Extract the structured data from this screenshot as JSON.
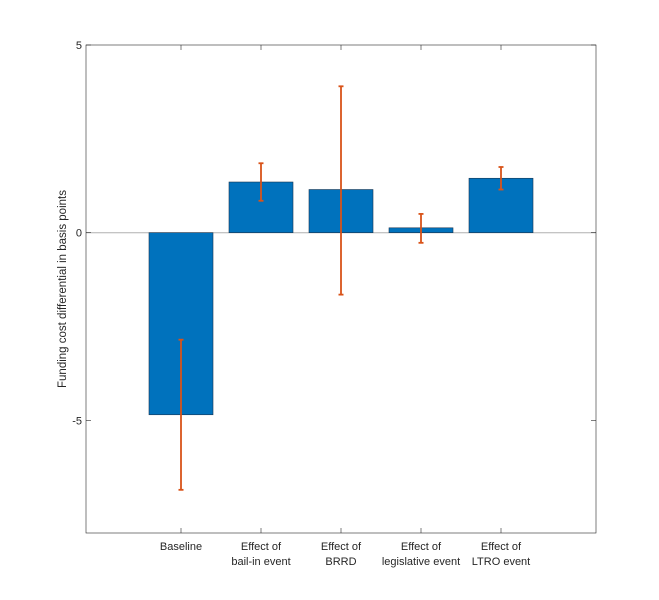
{
  "chart_data": {
    "type": "bar",
    "title": "",
    "xlabel": "",
    "ylabel": "Funding cost differential in basis points",
    "categories": [
      [
        "Baseline"
      ],
      [
        "Effect of",
        "bail-in event"
      ],
      [
        "Effect of",
        "BRRD"
      ],
      [
        "Effect of",
        "legislative event"
      ],
      [
        "Effect of",
        "LTRO event"
      ]
    ],
    "values": [
      -4.85,
      1.35,
      1.15,
      0.13,
      1.45
    ],
    "error_low": [
      -6.85,
      0.85,
      -1.65,
      -0.27,
      1.15
    ],
    "error_high": [
      -2.85,
      1.85,
      3.9,
      0.5,
      1.75
    ],
    "ylim": [
      -8,
      5
    ],
    "yticks": [
      -5,
      0,
      5
    ],
    "grid": false,
    "colors": {
      "bar": "#0072BD",
      "error": "#D95319",
      "axis": "#262626",
      "zero_line": "#B0B0B0"
    }
  }
}
